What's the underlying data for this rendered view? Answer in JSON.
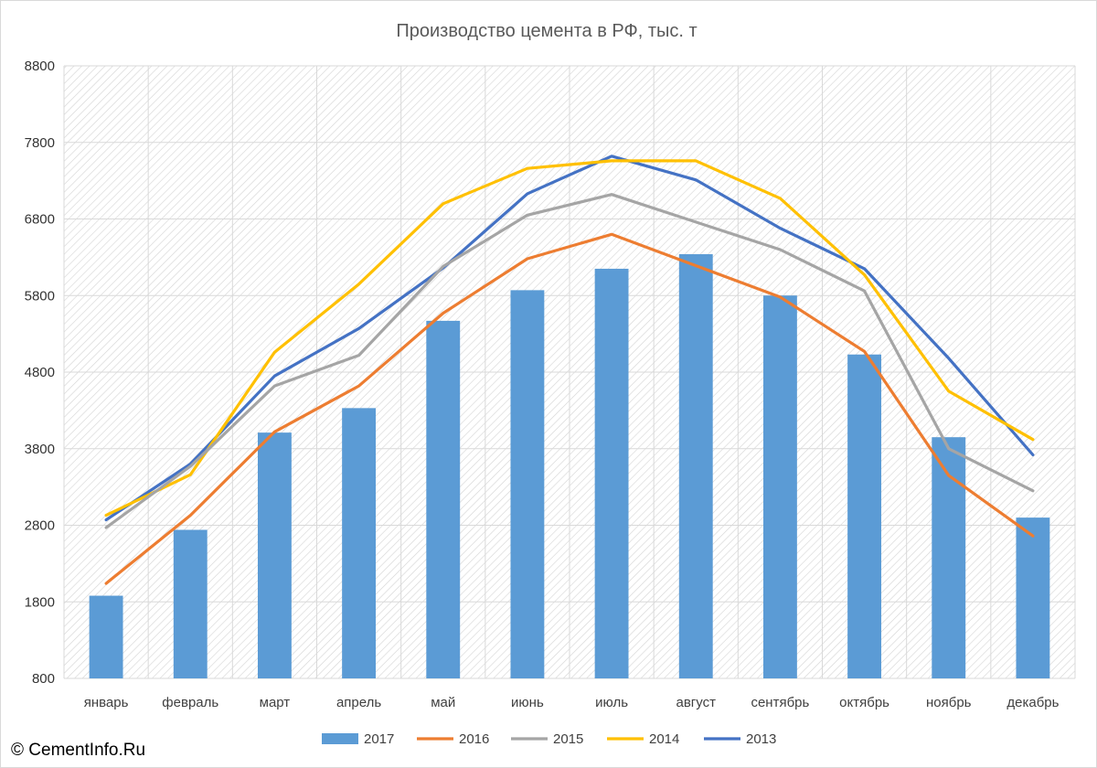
{
  "copyright": "© CementInfo.Ru",
  "chart_data": {
    "type": "bar",
    "title": "Производство цемента в РФ, тыс. т",
    "xlabel": "",
    "ylabel": "",
    "ylim": [
      800,
      8800
    ],
    "yticks": [
      800,
      1800,
      2800,
      3800,
      4800,
      5800,
      6800,
      7800,
      8800
    ],
    "grid": true,
    "legend": "bottom",
    "categories": [
      "январь",
      "февраль",
      "март",
      "апрель",
      "май",
      "июнь",
      "июль",
      "август",
      "сентябрь",
      "октябрь",
      "ноябрь",
      "декабрь"
    ],
    "series": [
      {
        "name": "2017",
        "type": "bar",
        "color": "#5b9bd5",
        "values": [
          1880,
          2740,
          4010,
          4330,
          5470,
          5870,
          6150,
          6340,
          5800,
          5030,
          3950,
          2900
        ]
      },
      {
        "name": "2016",
        "type": "line",
        "color": "#ed7d31",
        "values": [
          2040,
          2930,
          4020,
          4620,
          5570,
          6280,
          6600,
          6190,
          5780,
          5070,
          3450,
          2660
        ]
      },
      {
        "name": "2015",
        "type": "line",
        "color": "#a5a5a5",
        "values": [
          2770,
          3570,
          4620,
          5020,
          6180,
          6850,
          7120,
          6760,
          6400,
          5860,
          3800,
          3250
        ]
      },
      {
        "name": "2014",
        "type": "line",
        "color": "#ffc000",
        "values": [
          2930,
          3460,
          5060,
          5950,
          7000,
          7460,
          7560,
          7560,
          7070,
          6070,
          4550,
          3920
        ]
      },
      {
        "name": "2013",
        "type": "line",
        "color": "#4472c4",
        "values": [
          2870,
          3600,
          4750,
          5370,
          6160,
          7130,
          7620,
          7310,
          6680,
          6150,
          4980,
          3720
        ]
      }
    ]
  }
}
